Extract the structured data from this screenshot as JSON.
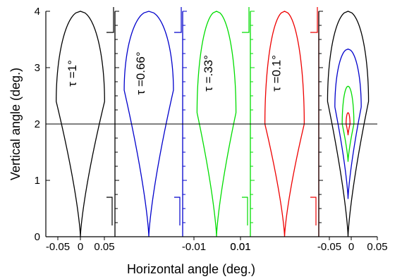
{
  "chart_data": {
    "type": "line",
    "xlabel": "Horizontal angle (deg.)",
    "ylabel": "Vertical angle (deg.)",
    "ylim": [
      0,
      4
    ],
    "yticks": [
      "0",
      "1",
      "2",
      "3",
      "4"
    ],
    "reference_line_y": 2,
    "colors": {
      "tau_1": "#000000",
      "tau_066": "#0000cc",
      "tau_033": "#00dd00",
      "tau_01": "#ee0000"
    },
    "panels": [
      {
        "name": "tau-1",
        "label": "τ =1°",
        "color": "#000000",
        "xlim": [
          -0.06,
          0.06
        ],
        "xticks": [
          "-0.05",
          "0",
          "0.05"
        ],
        "curve": {
          "y_min": 0,
          "y_max": 4,
          "y_widest": 2.4,
          "half_width": 0.042
        }
      },
      {
        "name": "tau-066",
        "label": "τ =0.66°",
        "color": "#0000cc",
        "xlim": [
          -0.055,
          0.055
        ],
        "xticks": [],
        "curve": {
          "y_min": 0,
          "y_max": 4,
          "y_widest": 2.6,
          "half_width": 0.04
        }
      },
      {
        "name": "tau-033",
        "label": "τ =.33°",
        "color": "#00dd00",
        "xlim": [
          -0.02,
          0.02
        ],
        "xticks": [
          "-0.01",
          "0.01"
        ],
        "curve": {
          "y_min": 0,
          "y_max": 4,
          "y_widest": 2.2,
          "half_width": 0.0115
        }
      },
      {
        "name": "tau-01",
        "label": "τ =0.1°",
        "color": "#ee0000",
        "xlim": [
          -0.02,
          0.02
        ],
        "xticks": [
          "0.01"
        ],
        "curve": {
          "y_min": 0,
          "y_max": 4,
          "y_widest": 2.0,
          "half_width": 0.0115
        }
      },
      {
        "name": "combined",
        "label": "",
        "color": "#000000",
        "xlim": [
          -0.06,
          0.06
        ],
        "xticks": [
          "-0.05",
          "0",
          "0.05"
        ],
        "curves": [
          {
            "color": "#000000",
            "y_min": 0,
            "y_max": 4,
            "y_widest": 2.4,
            "half_width": 0.042
          },
          {
            "color": "#0000cc",
            "y_min": 0.67,
            "y_max": 3.33,
            "y_widest": 2.3,
            "half_width": 0.027
          },
          {
            "color": "#00dd00",
            "y_min": 1.33,
            "y_max": 2.67,
            "y_widest": 2.0,
            "half_width": 0.012
          },
          {
            "color": "#ee0000",
            "y_min": 1.8,
            "y_max": 2.2,
            "y_widest": 2.0,
            "half_width": 0.004
          }
        ]
      }
    ]
  }
}
